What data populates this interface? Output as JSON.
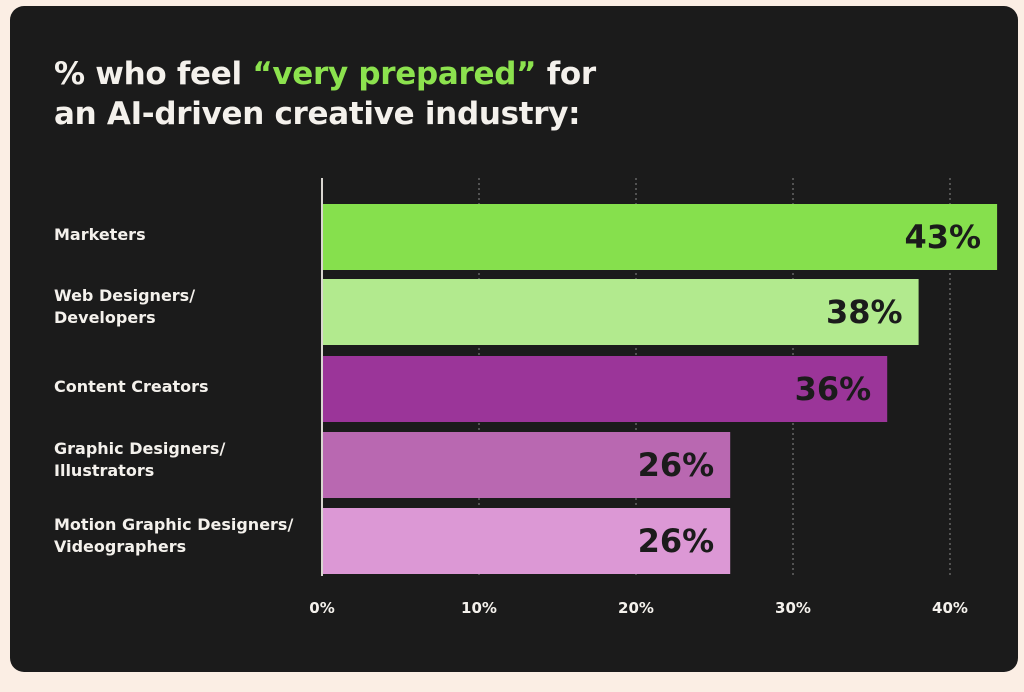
{
  "title": {
    "prefix": "% who feel ",
    "highlight": "“very prepared”",
    "line1_suffix": " for",
    "line2": "an AI-driven creative industry:"
  },
  "colors": {
    "background": "#1b1b1b",
    "page": "#fbeee4",
    "highlight": "#8ce24e",
    "text": "#f4f1ec"
  },
  "chart_data": {
    "type": "bar",
    "orientation": "horizontal",
    "categories": [
      [
        "Marketers"
      ],
      [
        "Web Designers/",
        "Developers"
      ],
      [
        "Content Creators"
      ],
      [
        "Graphic Designers/",
        "Illustrators"
      ],
      [
        "Motion Graphic Designers/",
        "Videographers"
      ]
    ],
    "values": [
      43,
      38,
      36,
      26,
      26
    ],
    "value_labels": [
      "43%",
      "38%",
      "36%",
      "26%",
      "26%"
    ],
    "bar_colors": [
      "#86e04d",
      "#b2ea8e",
      "#9b3599",
      "#b968b1",
      "#dc98d5"
    ],
    "x_ticks": [
      0,
      10,
      20,
      30,
      40
    ],
    "x_tick_labels": [
      "0%",
      "10%",
      "20%",
      "30%",
      "40%"
    ],
    "xlim": [
      0,
      40
    ],
    "grid": "vertical dotted",
    "legend": "none"
  }
}
